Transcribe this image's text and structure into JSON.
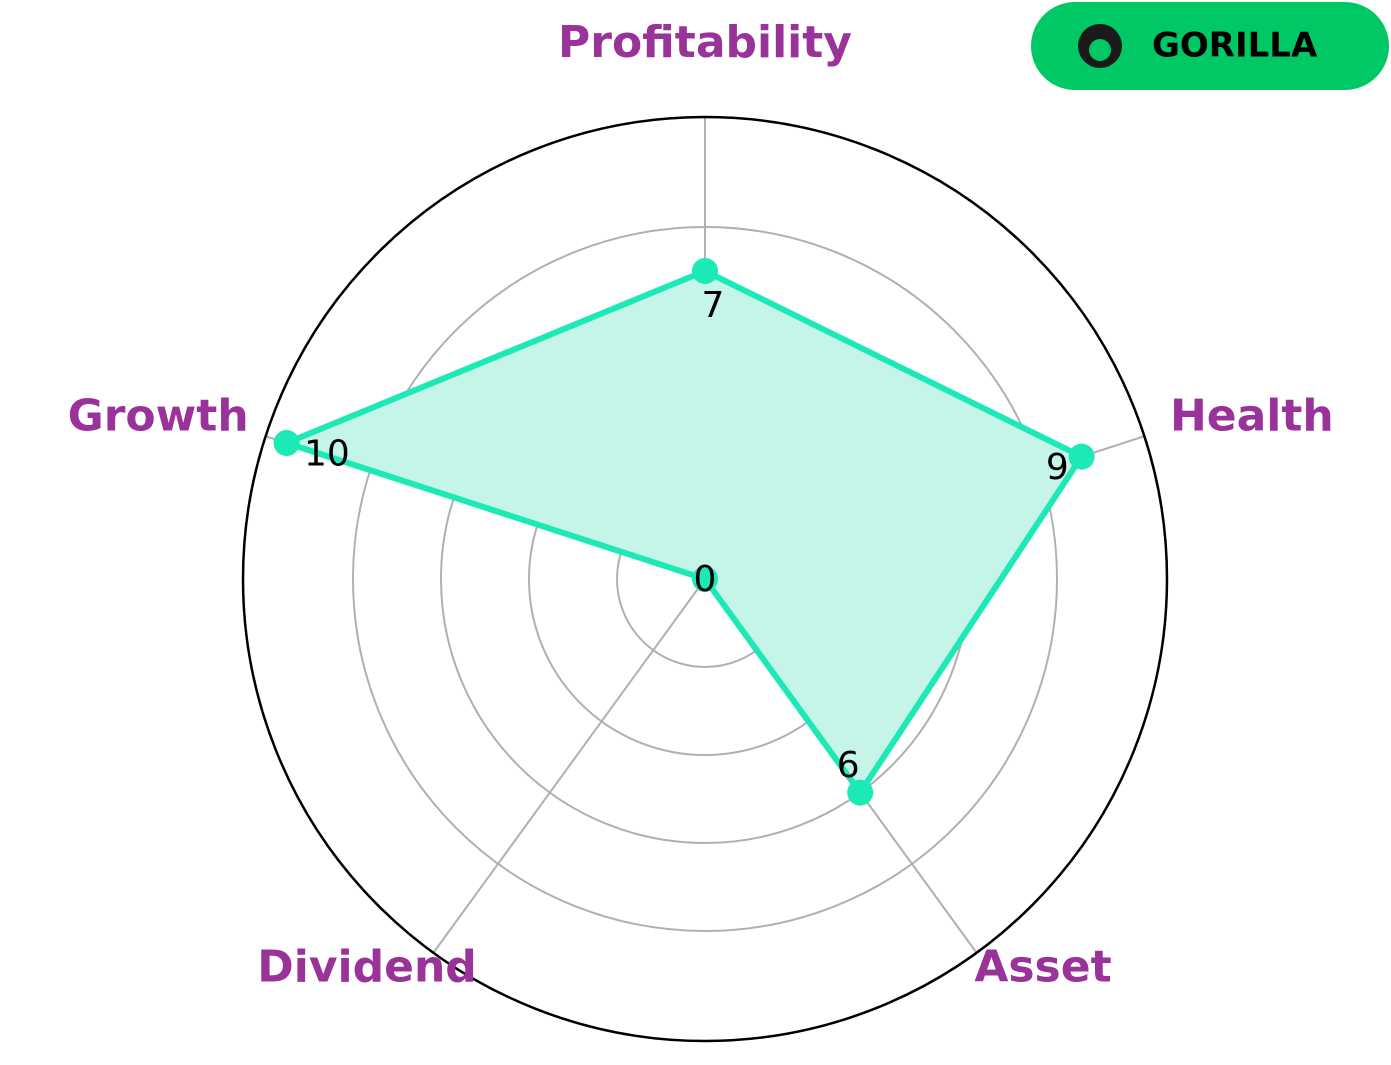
{
  "badge": "GORILLA",
  "chart_data": {
    "type": "radar",
    "categories": [
      "Profitability",
      "Health",
      "Asset",
      "Dividend",
      "Growth"
    ],
    "values": [
      7,
      9,
      6,
      0,
      10
    ],
    "color": "#1de9b6",
    "fill_color": "#c4f5e8",
    "label_color": "#993399",
    "ylim": [
      0,
      10.5
    ],
    "yticks": [
      2,
      4,
      6,
      8
    ],
    "grid": true
  }
}
